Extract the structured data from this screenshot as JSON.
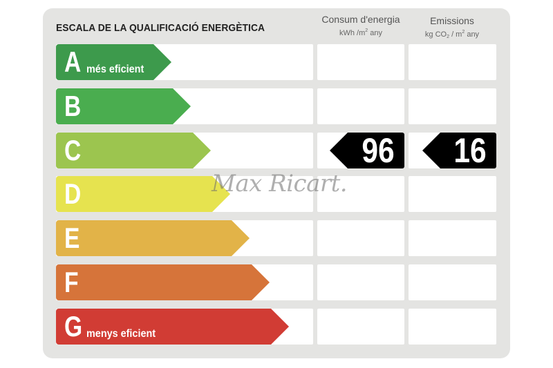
{
  "title": "ESCALA DE LA QUALIFICACIÓ ENERGÈTICA",
  "columns": {
    "consum": {
      "label": "Consum d'energia",
      "unit_prefix": "kWh /m",
      "unit_sup": "2",
      "unit_suffix": " any"
    },
    "emissions": {
      "label": "Emissions",
      "unit_prefix": "kg CO",
      "unit_sub": "2",
      "unit_mid": "  / m",
      "unit_sup": "2",
      "unit_suffix": "  any"
    }
  },
  "ratings": [
    {
      "letter": "A",
      "sublabel": "més eficient",
      "color": "#3d9a4c"
    },
    {
      "letter": "B",
      "sublabel": "",
      "color": "#4aad4f"
    },
    {
      "letter": "C",
      "sublabel": "",
      "color": "#9cc54f"
    },
    {
      "letter": "D",
      "sublabel": "",
      "color": "#e6e34f"
    },
    {
      "letter": "E",
      "sublabel": "",
      "color": "#e2b348"
    },
    {
      "letter": "F",
      "sublabel": "",
      "color": "#d6743a"
    },
    {
      "letter": "G",
      "sublabel": "menys eficient",
      "color": "#d13c34"
    }
  ],
  "current": {
    "rating": "C",
    "consumption_value": "96",
    "emissions_value": "16"
  },
  "watermark": "Max Ricart."
}
